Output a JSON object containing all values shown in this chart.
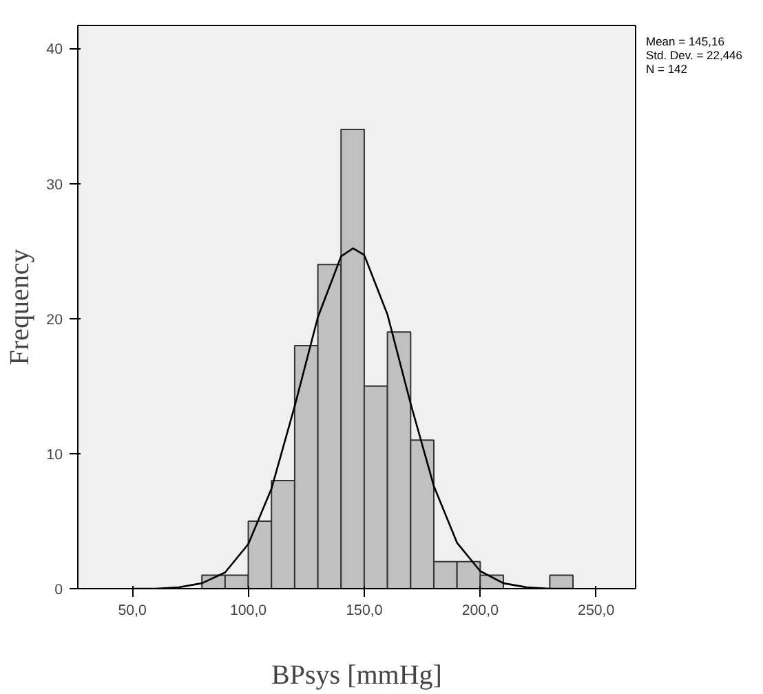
{
  "chart_data": {
    "type": "histogram",
    "xlabel": "BPsys [mmHg]",
    "ylabel": "Frequency",
    "annotations": [
      "Mean = 145,16",
      "Std. Dev. = 22,446",
      "N = 142"
    ],
    "series": [
      {
        "color": "#c0c0c0",
        "bins": [
          80,
          90,
          100,
          110,
          120,
          130,
          140,
          150,
          160,
          170,
          180,
          190,
          200,
          210,
          220,
          230,
          240
        ],
        "values": [
          1,
          1,
          5,
          8,
          18,
          24,
          34,
          15,
          19,
          11,
          2,
          2,
          1,
          0,
          0,
          1
        ]
      },
      {
        "type": "line",
        "color": "#000000",
        "x": [
          50,
          60,
          70,
          80,
          90,
          100,
          110,
          120,
          130,
          140,
          145.16,
          150,
          160,
          170,
          180,
          190,
          200,
          210,
          220,
          230,
          240
        ],
        "values": [
          0,
          0,
          0.1,
          0.4,
          1.2,
          3.3,
          7.4,
          13.5,
          20.1,
          24.6,
          25.2,
          24.7,
          20.3,
          13.7,
          7.6,
          3.4,
          1.3,
          0.4,
          0.1,
          0,
          0
        ]
      }
    ],
    "xlim": [
      26.5,
      267
    ],
    "ylim": [
      0,
      41.7
    ],
    "xticks": [
      {
        "value": 50,
        "label": "50,0"
      },
      {
        "value": 100,
        "label": "100,0"
      },
      {
        "value": 150,
        "label": "150,0"
      },
      {
        "value": 200,
        "label": "200,0"
      },
      {
        "value": 250,
        "label": "250,0"
      }
    ],
    "yticks": [
      0,
      10,
      20,
      30,
      40
    ],
    "grid": false
  }
}
